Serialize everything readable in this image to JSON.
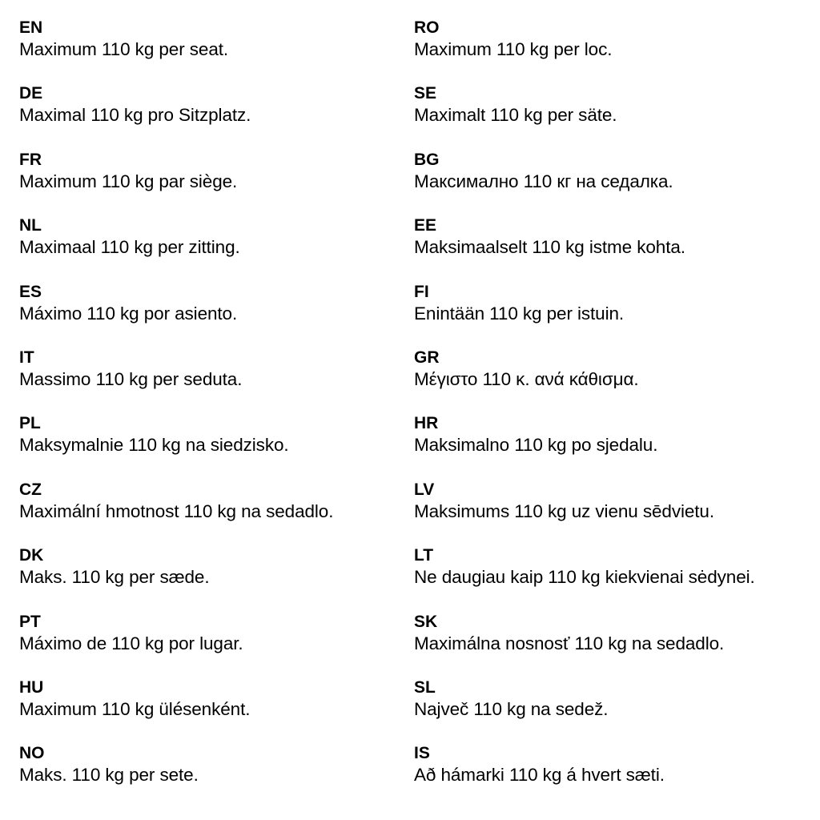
{
  "left_column": [
    {
      "code": "EN",
      "text": "Maximum 110 kg per seat."
    },
    {
      "code": "DE",
      "text": "Maximal 110 kg pro Sitzplatz."
    },
    {
      "code": "FR",
      "text": "Maximum 110 kg par siège."
    },
    {
      "code": "NL",
      "text": "Maximaal 110 kg per zitting."
    },
    {
      "code": "ES",
      "text": "Máximo 110 kg por asiento."
    },
    {
      "code": "IT",
      "text": "Massimo 110 kg per seduta."
    },
    {
      "code": "PL",
      "text": "Maksymalnie 110 kg na siedzisko."
    },
    {
      "code": "CZ",
      "text": "Maximální hmotnost 110 kg na sedadlo."
    },
    {
      "code": "DK",
      "text": "Maks. 110 kg per sæde."
    },
    {
      "code": "PT",
      "text": "Máximo de 110 kg por lugar."
    },
    {
      "code": "HU",
      "text": "Maximum 110 kg ülésenként."
    },
    {
      "code": "NO",
      "text": "Maks. 110 kg per sete."
    }
  ],
  "right_column": [
    {
      "code": "RO",
      "text": "Maximum 110 kg per loc."
    },
    {
      "code": "SE",
      "text": "Maximalt 110 kg per säte."
    },
    {
      "code": "BG",
      "text": "Максимално 110 кг на седалка."
    },
    {
      "code": "EE",
      "text": "Maksimaalselt 110 kg istme kohta."
    },
    {
      "code": "FI",
      "text": "Enintään 110 kg per istuin."
    },
    {
      "code": "GR",
      "text": "Μέγιστο 110 κ. ανά κάθισμα."
    },
    {
      "code": "HR",
      "text": "Maksimalno 110 kg po sjedalu."
    },
    {
      "code": "LV",
      "text": "Maksimums 110 kg uz vienu sēdvietu."
    },
    {
      "code": "LT",
      "text": "Ne daugiau kaip 110 kg kiekvienai sėdynei."
    },
    {
      "code": "SK",
      "text": "Maximálna nosnosť 110 kg na sedadlo."
    },
    {
      "code": "SL",
      "text": "Največ 110 kg na sedež."
    },
    {
      "code": "IS",
      "text": "Að hámarki 110 kg á hvert sæti."
    }
  ]
}
